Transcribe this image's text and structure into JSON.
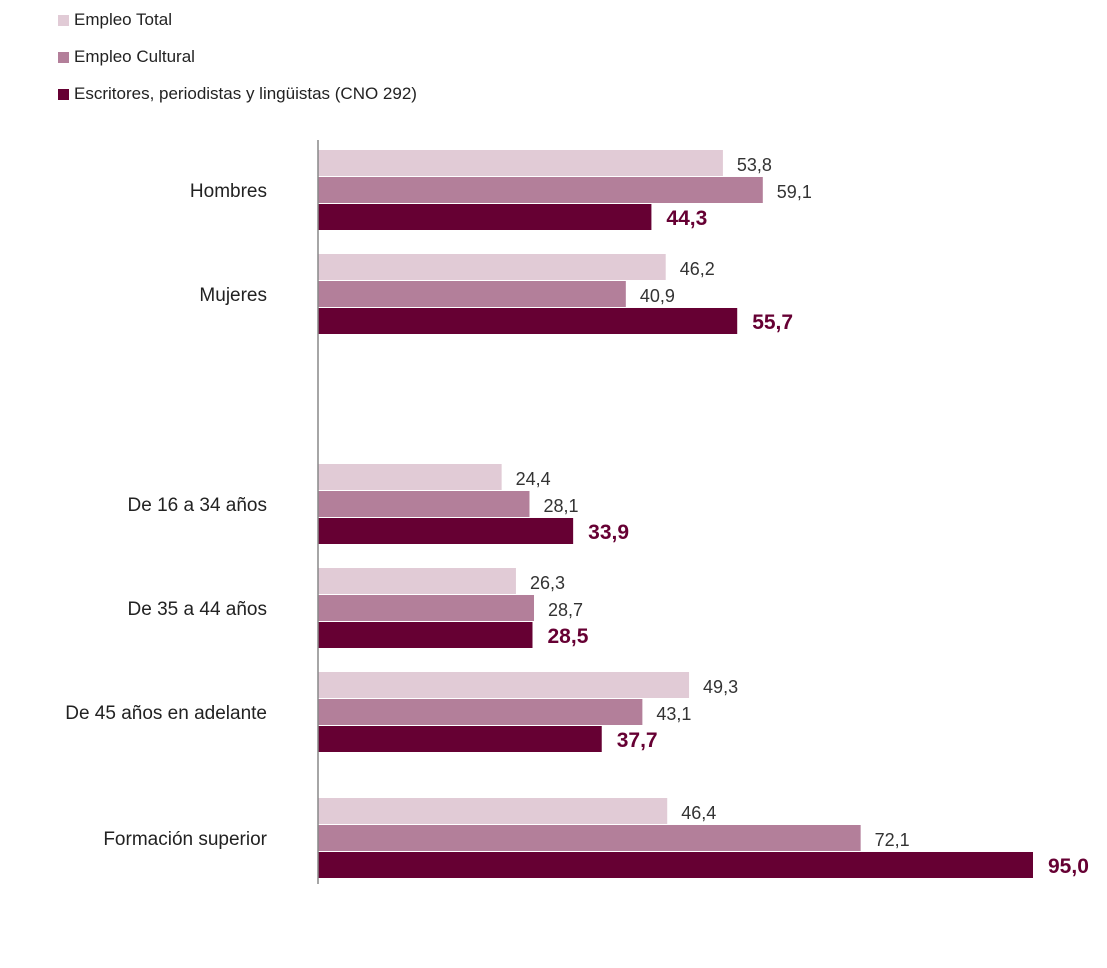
{
  "chart_data": {
    "type": "bar",
    "orientation": "horizontal",
    "categories": [
      "Hombres",
      "Mujeres",
      "De 16 a 34 años",
      "De 35 a 44 años",
      "De 45 años en adelante",
      "Formación superior"
    ],
    "series": [
      {
        "name": "Empleo Total",
        "color": "#e1cbd6",
        "values": [
          53.8,
          46.2,
          24.4,
          26.3,
          49.3,
          46.4
        ],
        "labels": [
          "53,8",
          "46,2",
          "24,4",
          "26,3",
          "49,3",
          "46,4"
        ]
      },
      {
        "name": "Empleo Cultural",
        "color": "#b37f9a",
        "values": [
          59.1,
          40.9,
          28.1,
          28.7,
          43.1,
          72.1
        ],
        "labels": [
          "59,1",
          "40,9",
          "28,1",
          "28,7",
          "43,1",
          "72,1"
        ]
      },
      {
        "name": "Escritores, periodistas y lingüistas (CNO 292)",
        "color": "#660033",
        "values": [
          44.3,
          55.7,
          33.9,
          28.5,
          37.7,
          95.0
        ],
        "labels": [
          "44,3",
          "55,7",
          "33,9",
          "28,5",
          "37,7",
          "95,0"
        ]
      }
    ],
    "xlim": [
      0,
      95
    ],
    "grid": false,
    "legend_position": "top-left"
  }
}
